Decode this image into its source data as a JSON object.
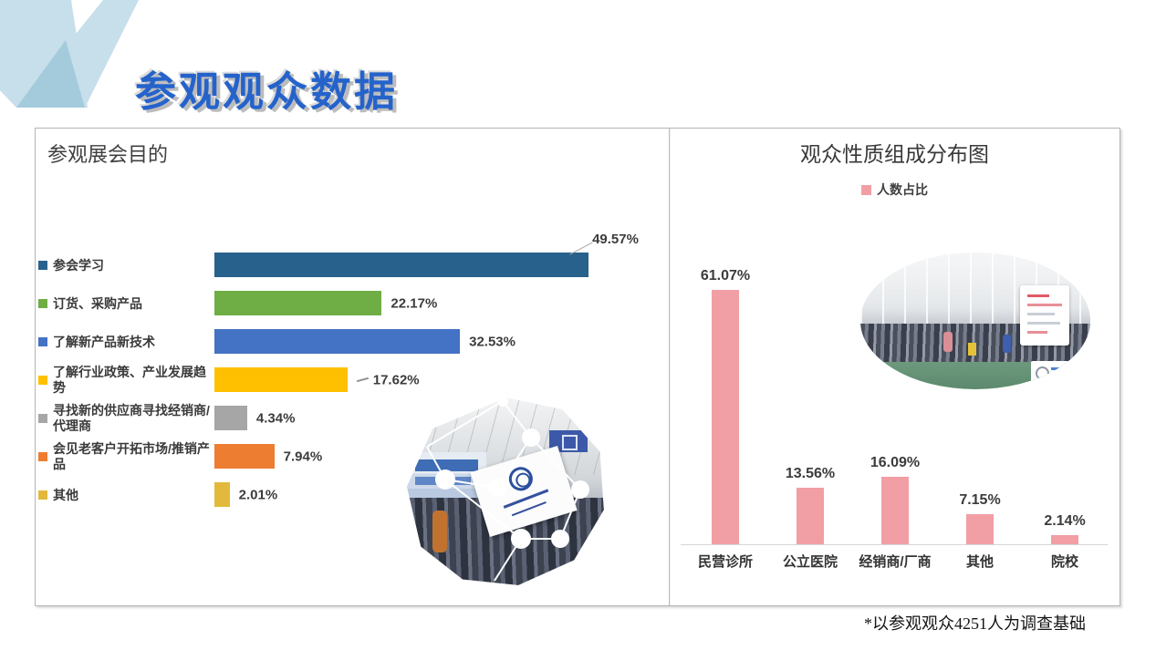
{
  "slide": {
    "title": "参观观众数据",
    "footnote": "*以参观观众4251人为调查基础"
  },
  "chart_data": [
    {
      "type": "bar",
      "orientation": "horizontal",
      "title": "参观展会目的",
      "categories": [
        "参会学习",
        "订货、采购产品",
        "了解新产品新技术",
        "了解行业政策、产业发展趋势",
        "寻找新的供应商寻找经销商/代理商",
        "会见老客户开拓市场/推销产品",
        "其他"
      ],
      "values": [
        49.57,
        22.17,
        32.53,
        17.62,
        4.34,
        7.94,
        2.01
      ],
      "colors": [
        "#27618C",
        "#6FAE44",
        "#4472C4",
        "#FFC000",
        "#A6A6A6",
        "#ED7D31",
        "#E2B93B"
      ],
      "value_suffix": "%",
      "xlim": [
        0,
        55
      ],
      "grid": false,
      "legend_position": "none",
      "callout_index": 0,
      "dash_leader_index": 3
    },
    {
      "type": "bar",
      "orientation": "vertical",
      "title": "观众性质组成分布图",
      "legend": [
        "人数占比"
      ],
      "legend_position": "top",
      "categories": [
        "民营诊所",
        "公立医院",
        "经销商/厂商",
        "其他",
        "院校"
      ],
      "values": [
        61.07,
        13.56,
        16.09,
        7.15,
        2.14
      ],
      "bar_color": "#F29EA5",
      "value_suffix": "%",
      "ylim": [
        0,
        65
      ],
      "grid": false
    }
  ],
  "decoration": {
    "v_light": "#C6DFEA",
    "v_dark": "#A4CBDC"
  }
}
